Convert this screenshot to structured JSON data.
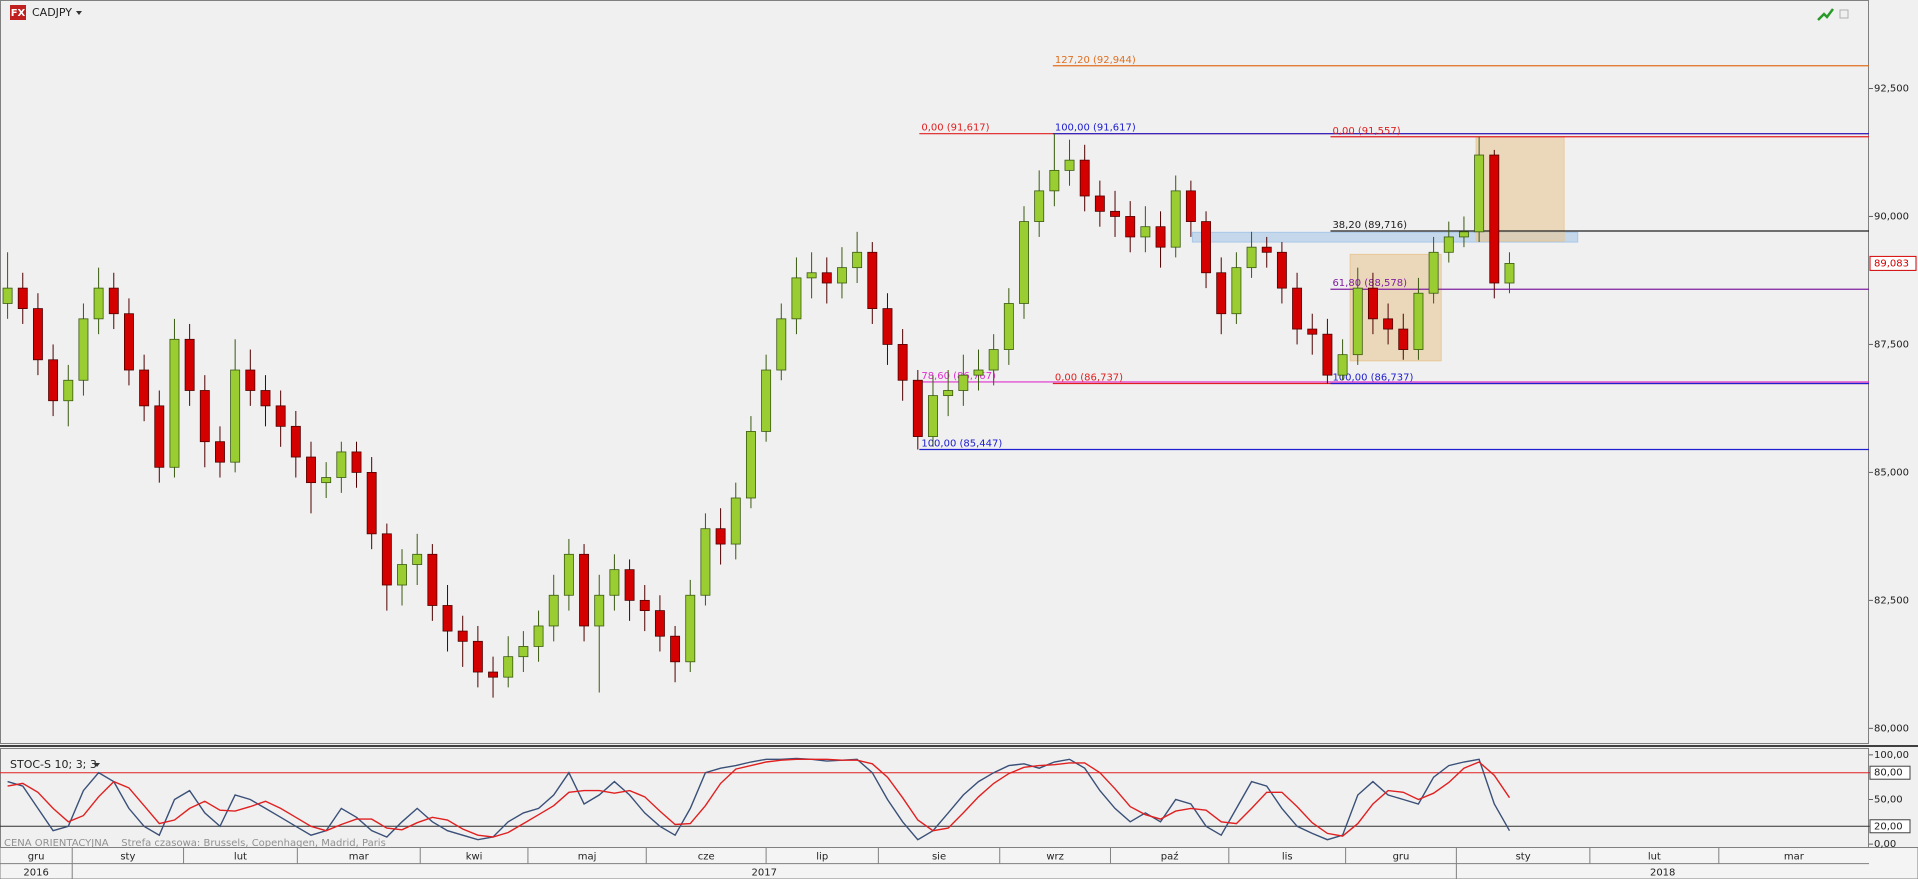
{
  "header": {
    "symbol": "CADJPY"
  },
  "footer": {
    "note": "CENA ORIENTACYJNA    Strefa czasowa: Brussels, Copenhagen, Madrid, Paris"
  },
  "chart_data": [
    {
      "type": "candlestick",
      "up_color": "#9acd32",
      "down_color": "#d40000",
      "xlim": [
        0,
        123.2
      ],
      "ylim": [
        79.7,
        93.75
      ],
      "yticks": [
        {
          "value": 80,
          "label": "80,000"
        },
        {
          "value": 82.5,
          "label": "82,500"
        },
        {
          "value": 85,
          "label": "85,000"
        },
        {
          "value": 87.5,
          "label": "87,500"
        },
        {
          "value": 90,
          "label": "90,000"
        },
        {
          "value": 92.5,
          "label": "92,500"
        }
      ],
      "last_price": {
        "value": 89.083,
        "label": "89,083",
        "color": "#d40000"
      },
      "open": [
        88.3,
        88.6,
        88.2,
        87.2,
        86.4,
        86.8,
        88.0,
        88.6,
        88.1,
        87.0,
        86.3,
        85.1,
        87.6,
        86.6,
        85.6,
        85.2,
        87.0,
        86.6,
        86.3,
        85.9,
        85.3,
        84.8,
        84.9,
        85.4,
        85.0,
        83.8,
        82.8,
        83.2,
        83.4,
        82.4,
        81.9,
        81.7,
        81.1,
        81.0,
        81.4,
        81.6,
        82.0,
        82.6,
        83.4,
        82.0,
        82.6,
        83.1,
        82.5,
        82.3,
        81.8,
        81.3,
        82.6,
        83.9,
        83.6,
        84.5,
        85.8,
        87.0,
        88.0,
        88.8,
        88.9,
        88.7,
        89.0,
        89.3,
        88.2,
        87.5,
        86.8,
        85.7,
        86.5,
        86.6,
        86.9,
        87.0,
        87.4,
        88.3,
        89.9,
        90.5,
        90.9,
        91.1,
        90.4,
        90.1,
        90.0,
        89.6,
        89.8,
        89.4,
        90.5,
        89.9,
        88.9,
        88.1,
        89.0,
        89.4,
        89.3,
        88.6,
        87.8,
        87.7,
        86.9,
        87.3,
        88.6,
        88.0,
        87.8,
        87.4,
        88.5,
        89.3,
        89.6,
        89.7,
        91.2,
        88.7
      ],
      "high": [
        89.3,
        88.9,
        88.5,
        87.5,
        87.1,
        88.3,
        89.0,
        88.9,
        88.4,
        87.3,
        86.6,
        88.0,
        87.9,
        86.9,
        85.9,
        87.6,
        87.4,
        86.9,
        86.6,
        86.2,
        85.6,
        85.2,
        85.6,
        85.6,
        85.3,
        84.0,
        83.5,
        83.8,
        83.6,
        82.8,
        82.2,
        82.0,
        81.4,
        81.8,
        81.9,
        82.3,
        83.0,
        83.7,
        83.6,
        83.0,
        83.4,
        83.3,
        82.8,
        82.6,
        82.0,
        82.9,
        84.2,
        84.3,
        84.8,
        86.1,
        87.3,
        88.3,
        89.2,
        89.3,
        89.2,
        89.4,
        89.7,
        89.5,
        88.5,
        87.8,
        87.0,
        86.9,
        87.0,
        87.3,
        87.4,
        87.7,
        88.6,
        90.2,
        90.9,
        91.617,
        91.5,
        91.4,
        90.7,
        90.5,
        90.3,
        90.2,
        90.1,
        90.8,
        90.7,
        90.1,
        89.2,
        89.3,
        89.7,
        89.6,
        89.5,
        88.9,
        88.1,
        88.0,
        87.6,
        89.0,
        88.9,
        88.3,
        88.1,
        88.8,
        89.6,
        89.9,
        90.0,
        91.557,
        91.3,
        89.3
      ],
      "low": [
        88.0,
        87.9,
        86.9,
        86.1,
        85.9,
        86.5,
        87.7,
        87.8,
        86.7,
        86.0,
        84.8,
        84.9,
        86.3,
        85.1,
        84.9,
        85.0,
        86.3,
        85.9,
        85.5,
        84.9,
        84.2,
        84.5,
        84.6,
        84.7,
        83.5,
        82.3,
        82.4,
        82.8,
        82.1,
        81.5,
        81.2,
        80.8,
        80.6,
        80.8,
        81.1,
        81.3,
        81.7,
        82.3,
        81.7,
        80.7,
        82.3,
        82.1,
        81.9,
        81.5,
        80.9,
        81.1,
        82.4,
        83.2,
        83.3,
        84.3,
        85.6,
        86.8,
        87.7,
        88.4,
        88.3,
        88.4,
        88.7,
        87.9,
        87.1,
        86.4,
        85.447,
        85.5,
        86.1,
        86.3,
        86.6,
        86.7,
        87.1,
        88.0,
        89.6,
        90.2,
        90.6,
        90.1,
        89.8,
        89.6,
        89.3,
        89.3,
        89.0,
        89.2,
        89.6,
        88.6,
        87.7,
        87.9,
        88.8,
        89.0,
        88.3,
        87.5,
        87.3,
        86.737,
        86.8,
        87.1,
        87.7,
        87.5,
        87.2,
        87.2,
        88.3,
        89.1,
        89.4,
        89.5,
        88.4,
        88.5
      ],
      "close": [
        88.6,
        88.2,
        87.2,
        86.4,
        86.8,
        88.0,
        88.6,
        88.1,
        87.0,
        86.3,
        85.1,
        87.6,
        86.6,
        85.6,
        85.2,
        87.0,
        86.6,
        86.3,
        85.9,
        85.3,
        84.8,
        84.9,
        85.4,
        85.0,
        83.8,
        82.8,
        83.2,
        83.4,
        82.4,
        81.9,
        81.7,
        81.1,
        81.0,
        81.4,
        81.6,
        82.0,
        82.6,
        83.4,
        82.0,
        82.6,
        83.1,
        82.5,
        82.3,
        81.8,
        81.3,
        82.6,
        83.9,
        83.6,
        84.5,
        85.8,
        87.0,
        88.0,
        88.8,
        88.9,
        88.7,
        89.0,
        89.3,
        88.2,
        87.5,
        86.8,
        85.7,
        86.5,
        86.6,
        86.9,
        87.0,
        87.4,
        88.3,
        89.9,
        90.5,
        90.9,
        91.1,
        90.4,
        90.1,
        90.0,
        89.6,
        89.8,
        89.4,
        90.5,
        89.9,
        88.9,
        88.1,
        89.0,
        89.4,
        89.3,
        88.6,
        87.8,
        87.7,
        86.9,
        87.3,
        88.6,
        88.0,
        87.8,
        87.4,
        88.5,
        89.3,
        89.6,
        89.7,
        91.2,
        88.7,
        89.083
      ],
      "fib_levels": [
        {
          "label": "127,20 (92,944)",
          "value": 92.944,
          "color": "#e07020",
          "x_start": 69.4
        },
        {
          "label": "0,00 (91,617)",
          "value": 91.617,
          "color": "#e02020",
          "x_start": 60.6
        },
        {
          "label": "100,00 (91,617)",
          "value": 91.617,
          "color": "#2020d0",
          "x_start": 69.4
        },
        {
          "label": "0,00 (91,557)",
          "value": 91.557,
          "color": "#e02020",
          "x_start": 87.7
        },
        {
          "label": "38,20 (89,716)",
          "value": 89.716,
          "color": "#202020",
          "x_start": 87.7
        },
        {
          "label": "61,80 (88,578)",
          "value": 88.578,
          "color": "#8020a0",
          "x_start": 87.7
        },
        {
          "label": "78,60 (86,767)",
          "value": 86.767,
          "color": "#e030d0",
          "x_start": 60.6
        },
        {
          "label": "0,00 (86,737)",
          "value": 86.737,
          "color": "#e02020",
          "x_start": 69.4
        },
        {
          "label": "100,00 (86,737)",
          "value": 86.737,
          "color": "#2020d0",
          "x_start": 87.7
        },
        {
          "label": "100,00 (85,447)",
          "value": 85.447,
          "color": "#2020d0",
          "x_start": 60.6
        }
      ],
      "zones": [
        {
          "x": [
            78.6,
            104.0
          ],
          "y": [
            89.5,
            89.69
          ],
          "color": "#a8c8e8"
        },
        {
          "x": [
            89.0,
            95.0
          ],
          "y": [
            87.18,
            89.26
          ],
          "color": "#e8c898"
        },
        {
          "x": [
            97.3,
            103.1
          ],
          "y": [
            89.52,
            91.55
          ],
          "color": "#e8c898"
        }
      ]
    },
    {
      "type": "line",
      "title": "STOC-S 10; 3; 3",
      "xlim": [
        0,
        123.2
      ],
      "ylim": [
        -4,
        107
      ],
      "yticks": [
        {
          "value": 100,
          "label": "100,00"
        },
        {
          "value": 80,
          "label": "80,00"
        },
        {
          "value": 50,
          "label": "50,00"
        },
        {
          "value": 20,
          "label": "20,00"
        },
        {
          "value": 0,
          "label": "0,00"
        }
      ],
      "levels": [
        {
          "value": 80,
          "color": "#e02020"
        },
        {
          "value": 20,
          "color": "#303030"
        }
      ],
      "series": [
        {
          "color": "#3a5078",
          "values": [
            70,
            65,
            40,
            15,
            20,
            60,
            80,
            70,
            40,
            20,
            10,
            50,
            60,
            35,
            20,
            55,
            50,
            40,
            30,
            20,
            10,
            15,
            40,
            30,
            15,
            8,
            25,
            40,
            25,
            15,
            10,
            5,
            8,
            25,
            35,
            40,
            55,
            80,
            45,
            55,
            70,
            55,
            35,
            20,
            10,
            40,
            80,
            85,
            88,
            92,
            95,
            95,
            96,
            95,
            93,
            94,
            95,
            80,
            50,
            25,
            5,
            15,
            35,
            55,
            70,
            80,
            88,
            90,
            85,
            92,
            95,
            85,
            60,
            40,
            25,
            35,
            25,
            50,
            45,
            20,
            10,
            40,
            70,
            65,
            40,
            20,
            12,
            5,
            10,
            55,
            70,
            55,
            50,
            45,
            75,
            88,
            92,
            95,
            45,
            15
          ]
        },
        {
          "color": "#e02020",
          "values": [
            65,
            68,
            58,
            40,
            25,
            32,
            53,
            70,
            63,
            43,
            23,
            27,
            40,
            48,
            38,
            37,
            42,
            48,
            40,
            30,
            20,
            15,
            22,
            28,
            28,
            18,
            16,
            24,
            30,
            27,
            17,
            10,
            8,
            13,
            23,
            33,
            43,
            58,
            60,
            60,
            57,
            60,
            53,
            37,
            22,
            23,
            43,
            68,
            84,
            88,
            92,
            94,
            95,
            95,
            95,
            94,
            94,
            90,
            75,
            52,
            27,
            15,
            18,
            35,
            53,
            68,
            79,
            86,
            88,
            89,
            91,
            91,
            80,
            62,
            42,
            33,
            28,
            37,
            40,
            38,
            25,
            23,
            40,
            58,
            58,
            42,
            24,
            12,
            9,
            23,
            45,
            60,
            58,
            50,
            57,
            69,
            85,
            92,
            77,
            52
          ]
        }
      ],
      "xticks": [
        {
          "value": 0,
          "label": "gru"
        },
        {
          "value": 4.76,
          "label": "sty"
        },
        {
          "value": 12.1,
          "label": "lut"
        },
        {
          "value": 19.6,
          "label": "mar"
        },
        {
          "value": 27.7,
          "label": "kwi"
        },
        {
          "value": 34.8,
          "label": "maj"
        },
        {
          "value": 42.6,
          "label": "cze"
        },
        {
          "value": 50.5,
          "label": "lip"
        },
        {
          "value": 57.9,
          "label": "sie"
        },
        {
          "value": 65.9,
          "label": "wrz"
        },
        {
          "value": 73.2,
          "label": "paź"
        },
        {
          "value": 81.0,
          "label": "lis"
        },
        {
          "value": 88.7,
          "label": "gru"
        },
        {
          "value": 96.0,
          "label": "sty"
        },
        {
          "value": 104.8,
          "label": "lut"
        },
        {
          "value": 113.3,
          "label": "mar"
        }
      ],
      "year_ticks": [
        {
          "value": 0,
          "label": "2016"
        },
        {
          "value": 4.76,
          "label": "2017"
        },
        {
          "value": 96.0,
          "label": "2018"
        }
      ]
    }
  ]
}
